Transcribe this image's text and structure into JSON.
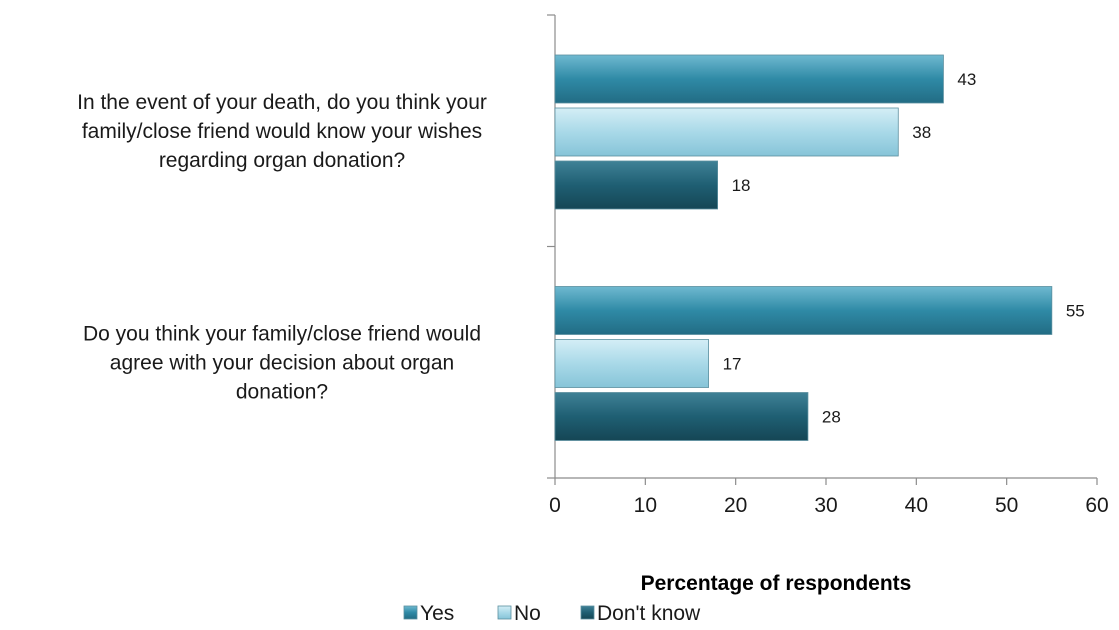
{
  "chart_data": {
    "type": "bar",
    "orientation": "horizontal",
    "categories": [
      "In the event of your death, do you think your family/close friend would know your wishes regarding organ donation?",
      "Do you think your family/close friend would agree with your decision about organ donation?"
    ],
    "category_lines": [
      [
        "In the event of your death, do you think your",
        "family/close friend would know your wishes",
        "regarding organ donation?"
      ],
      [
        "Do you think your family/close friend would",
        "agree with your decision about organ",
        "donation?"
      ]
    ],
    "series": [
      {
        "name": "Yes",
        "values": [
          43,
          55
        ],
        "color": "#2f8aa6"
      },
      {
        "name": "No",
        "values": [
          38,
          17
        ],
        "color": "#a9d9e8"
      },
      {
        "name": "Don't know",
        "values": [
          18,
          28
        ],
        "color": "#1f5f73"
      }
    ],
    "xlabel": "Percentage of respondents",
    "ylabel": "",
    "xlim": [
      0,
      60
    ],
    "xticks": [
      0,
      10,
      20,
      30,
      40,
      50,
      60
    ],
    "grid": false,
    "legend_position": "bottom"
  }
}
